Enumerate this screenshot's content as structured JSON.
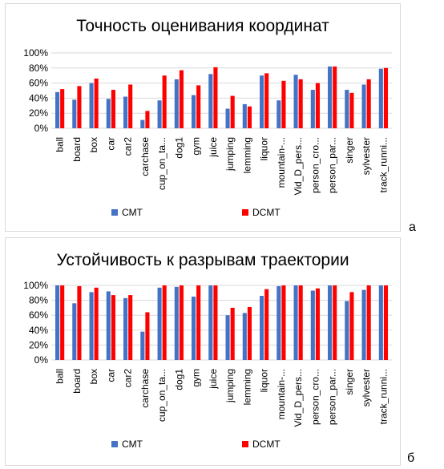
{
  "chart_data": [
    {
      "type": "bar",
      "title": "Точность оценивания координат",
      "categories": [
        "ball",
        "board",
        "box",
        "car",
        "car2",
        "carchase",
        "cup_on_ta...",
        "dog1",
        "gym",
        "juice",
        "jumping",
        "lemming",
        "liquor",
        "mountain-...",
        "Vid_D_pers...",
        "person_cro...",
        "person_par...",
        "singer",
        "sylvester",
        "track_runni..."
      ],
      "series": [
        {
          "name": "CMT",
          "color": "#4472c4",
          "values": [
            0.48,
            0.38,
            0.6,
            0.39,
            0.42,
            0.11,
            0.37,
            0.65,
            0.44,
            0.72,
            0.26,
            0.32,
            0.7,
            0.37,
            0.71,
            0.51,
            0.82,
            0.51,
            0.58,
            0.79
          ]
        },
        {
          "name": "DCMT",
          "color": "#ff0000",
          "values": [
            0.52,
            0.56,
            0.66,
            0.51,
            0.58,
            0.23,
            0.7,
            0.77,
            0.57,
            0.81,
            0.43,
            0.29,
            0.73,
            0.63,
            0.65,
            0.6,
            0.82,
            0.47,
            0.65,
            0.8
          ]
        }
      ],
      "yticks": [
        "0%",
        "20%",
        "40%",
        "60%",
        "80%",
        "100%"
      ],
      "ylim": [
        0,
        1
      ],
      "legend": "bottom",
      "letter": "а"
    },
    {
      "type": "bar",
      "title": "Устойчивость к разрывам траектории",
      "categories": [
        "ball",
        "board",
        "box",
        "car",
        "car2",
        "carchase",
        "cup_on_ta...",
        "dog1",
        "gym",
        "juice",
        "jumping",
        "lemming",
        "liquor",
        "mountain-...",
        "Vid_D_pers...",
        "person_cro...",
        "person_par...",
        "singer",
        "sylvester",
        "track_runni..."
      ],
      "series": [
        {
          "name": "CMT",
          "color": "#4472c4",
          "values": [
            1.0,
            0.76,
            0.91,
            0.92,
            0.83,
            0.38,
            0.97,
            0.98,
            0.85,
            1.0,
            0.6,
            0.63,
            0.86,
            0.99,
            1.0,
            0.93,
            1.0,
            0.79,
            0.94,
            1.0
          ]
        },
        {
          "name": "DCMT",
          "color": "#ff0000",
          "values": [
            1.0,
            0.99,
            0.97,
            0.87,
            0.87,
            0.64,
            1.0,
            1.0,
            1.0,
            1.0,
            0.7,
            0.71,
            0.95,
            1.0,
            1.0,
            0.96,
            1.0,
            0.91,
            1.0,
            1.0
          ]
        }
      ],
      "yticks": [
        "0%",
        "20%",
        "40%",
        "60%",
        "80%",
        "100%"
      ],
      "ylim": [
        0,
        1
      ],
      "legend": "bottom",
      "letter": "б"
    }
  ]
}
